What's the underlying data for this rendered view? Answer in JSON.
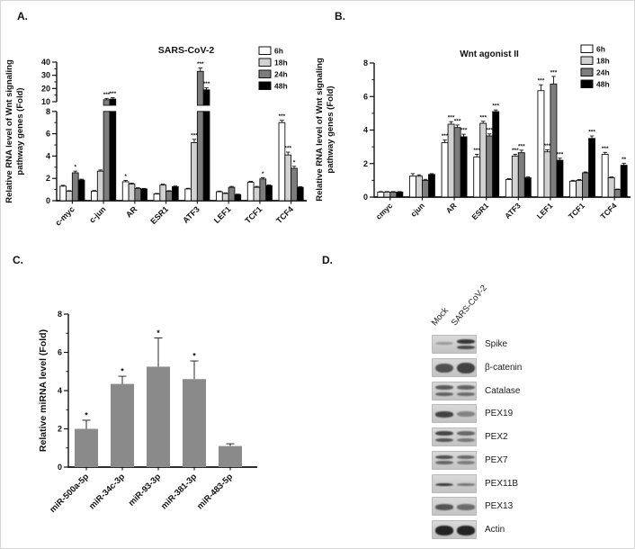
{
  "panels": {
    "A": {
      "letter": "A."
    },
    "B": {
      "letter": "B."
    },
    "C": {
      "letter": "C."
    },
    "D": {
      "letter": "D."
    }
  },
  "colors": {
    "series_fills": [
      "#ffffff",
      "#d2d2d2",
      "#7d7d7d",
      "#000000"
    ],
    "mirna_bar": "#8a8a8a",
    "axis": "#111111"
  },
  "chart_data": [
    {
      "id": "A",
      "type": "bar",
      "title": "SARS-CoV-2",
      "ylabel": "Relative RNA level of Wnt signaling pathway genes (Fold)",
      "ylabel_lines": [
        "Relative RNA level of Wnt signaling",
        "pathway genes (Fold)"
      ],
      "categories": [
        "c-myc",
        "c-jun",
        "AR",
        "ESR1",
        "ATF3",
        "LEF1",
        "TCF1",
        "TCF4"
      ],
      "axis_break": {
        "lower_range": [
          0,
          8
        ],
        "upper_range": [
          10,
          40
        ],
        "yticks_lower": [
          0,
          2,
          4,
          6,
          8
        ],
        "yticks_upper": [
          10,
          20,
          30,
          40
        ]
      },
      "legend_position": "top-right",
      "series": [
        {
          "name": "6h",
          "fill": "#ffffff",
          "values": [
            1.3,
            0.85,
            1.7,
            0.6,
            1.05,
            0.8,
            1.65,
            7.0
          ],
          "errors": [
            0.08,
            0.06,
            0.12,
            0.05,
            0.06,
            0.06,
            0.08,
            0.2
          ],
          "sig": [
            "",
            "",
            "*",
            "",
            "",
            "",
            "",
            "***"
          ]
        },
        {
          "name": "18h",
          "fill": "#d2d2d2",
          "values": [
            0.85,
            2.65,
            1.5,
            1.4,
            5.2,
            0.65,
            1.2,
            4.1
          ],
          "errors": [
            0.05,
            0.1,
            0.08,
            0.08,
            0.3,
            0.05,
            0.08,
            0.25
          ],
          "sig": [
            "",
            "",
            "",
            "",
            "***",
            "",
            "",
            "***"
          ]
        },
        {
          "name": "24h",
          "fill": "#7d7d7d",
          "values": [
            2.5,
            11.5,
            1.1,
            0.85,
            33.0,
            1.2,
            1.95,
            2.9
          ],
          "errors": [
            0.15,
            1.0,
            0.06,
            0.05,
            2.5,
            0.08,
            0.12,
            0.18
          ],
          "sig": [
            "*",
            "***",
            "",
            "",
            "***",
            "",
            "*",
            "*"
          ]
        },
        {
          "name": "48h",
          "fill": "#000000",
          "values": [
            1.85,
            12.0,
            1.05,
            1.25,
            19.0,
            0.55,
            1.35,
            1.2
          ],
          "errors": [
            0.08,
            1.0,
            0.05,
            0.06,
            1.5,
            0.04,
            0.06,
            0.06
          ],
          "sig": [
            "",
            "***",
            "",
            "",
            "***",
            "",
            "",
            ""
          ]
        }
      ]
    },
    {
      "id": "B",
      "type": "bar",
      "title": "Wnt agonist II",
      "ylabel": "Relative RNA level of Wnt signaling pathway genes (Fold)",
      "ylabel_lines": [
        "Relative RNA level of Wnt signaling",
        "pathway genes (Fold)"
      ],
      "categories": [
        "cmyc",
        "cjun",
        "AR",
        "ESR1",
        "ATF3",
        "LEF1",
        "TCF1",
        "TCF4"
      ],
      "ylim": [
        0,
        8
      ],
      "yticks": [
        0,
        2,
        4,
        6,
        8
      ],
      "legend_position": "top-right",
      "series": [
        {
          "name": "6h",
          "fill": "#ffffff",
          "values": [
            0.3,
            1.25,
            3.25,
            2.4,
            1.05,
            6.35,
            0.95,
            2.55
          ],
          "errors": [
            0.03,
            0.15,
            0.15,
            0.15,
            0.05,
            0.35,
            0.05,
            0.12
          ],
          "sig": [
            "",
            "",
            "***",
            "***",
            "",
            "***",
            "",
            "***"
          ]
        },
        {
          "name": "18h",
          "fill": "#d2d2d2",
          "values": [
            0.3,
            1.25,
            4.35,
            4.4,
            2.45,
            2.7,
            1.0,
            1.15
          ],
          "errors": [
            0.03,
            0.08,
            0.15,
            0.12,
            0.1,
            0.12,
            0.05,
            0.05
          ],
          "sig": [
            "",
            "",
            "***",
            "***",
            "***",
            "***",
            "",
            ""
          ]
        },
        {
          "name": "24h",
          "fill": "#7d7d7d",
          "values": [
            0.3,
            1.0,
            4.15,
            3.65,
            2.65,
            6.75,
            1.45,
            0.45
          ],
          "errors": [
            0.03,
            0.06,
            0.15,
            0.12,
            0.15,
            0.45,
            0.05,
            0.03
          ],
          "sig": [
            "",
            "",
            "***",
            "***",
            "***",
            "***",
            "",
            ""
          ]
        },
        {
          "name": "48h",
          "fill": "#000000",
          "values": [
            0.3,
            1.35,
            3.6,
            5.1,
            1.15,
            2.2,
            3.5,
            1.9
          ],
          "errors": [
            0.03,
            0.05,
            0.15,
            0.1,
            0.05,
            0.12,
            0.15,
            0.12
          ],
          "sig": [
            "",
            "",
            "***",
            "***",
            "",
            "***",
            "***",
            "**"
          ]
        }
      ]
    },
    {
      "id": "C",
      "type": "bar",
      "title": "",
      "ylabel": "Relative miRNA level (Fold)",
      "ylabel_lines": [
        "Relative miRNA level (Fold)"
      ],
      "categories": [
        "miR-500a-5p",
        "miR-34c-3p",
        "miR-93-3p",
        "miR-381-3p",
        "miR-483-5p"
      ],
      "ylim": [
        0,
        8
      ],
      "yticks": [
        0,
        2,
        4,
        6,
        8
      ],
      "bar_color": "#8a8a8a",
      "values": [
        2.0,
        4.35,
        5.25,
        4.6,
        1.1
      ],
      "errors": [
        0.45,
        0.4,
        1.5,
        0.95,
        0.12
      ],
      "sig": [
        "*",
        "*",
        "*",
        "*",
        ""
      ]
    }
  ],
  "blots": {
    "lane_labels": [
      "Mock",
      "SARS-CoV-2"
    ],
    "rows": [
      {
        "label": "Spike",
        "lanes": [
          [
            [
              0.32,
              0.18,
              0.3
            ]
          ],
          [
            [
              0.2,
              0.22,
              0.85
            ],
            [
              0.5,
              0.2,
              0.75
            ]
          ]
        ]
      },
      {
        "label": "β-catenin",
        "lanes": [
          [
            [
              0.22,
              0.52,
              0.7
            ]
          ],
          [
            [
              0.18,
              0.6,
              0.78
            ]
          ]
        ]
      },
      {
        "label": "Catalase",
        "lanes": [
          [
            [
              0.16,
              0.22,
              0.65
            ],
            [
              0.5,
              0.2,
              0.6
            ]
          ],
          [
            [
              0.16,
              0.22,
              0.6
            ],
            [
              0.5,
              0.2,
              0.55
            ]
          ]
        ]
      },
      {
        "label": "PEX19",
        "lanes": [
          [
            [
              0.35,
              0.3,
              0.78
            ]
          ],
          [
            [
              0.35,
              0.28,
              0.42
            ]
          ]
        ]
      },
      {
        "label": "PEX2",
        "lanes": [
          [
            [
              0.14,
              0.24,
              0.78
            ],
            [
              0.52,
              0.22,
              0.68
            ]
          ],
          [
            [
              0.14,
              0.24,
              0.58
            ],
            [
              0.52,
              0.22,
              0.48
            ]
          ]
        ]
      },
      {
        "label": "PEX7",
        "lanes": [
          [
            [
              0.18,
              0.22,
              0.72
            ],
            [
              0.48,
              0.2,
              0.58
            ]
          ],
          [
            [
              0.18,
              0.22,
              0.58
            ],
            [
              0.48,
              0.2,
              0.45
            ]
          ]
        ]
      },
      {
        "label": "PEX11B",
        "lanes": [
          [
            [
              0.42,
              0.16,
              0.85
            ]
          ],
          [
            [
              0.42,
              0.14,
              0.5
            ]
          ]
        ]
      },
      {
        "label": "PEX13",
        "lanes": [
          [
            [
              0.35,
              0.3,
              0.68
            ]
          ],
          [
            [
              0.35,
              0.3,
              0.55
            ]
          ]
        ]
      },
      {
        "label": "Actin",
        "lanes": [
          [
            [
              0.25,
              0.5,
              0.95
            ]
          ],
          [
            [
              0.25,
              0.5,
              0.95
            ]
          ]
        ]
      }
    ]
  }
}
